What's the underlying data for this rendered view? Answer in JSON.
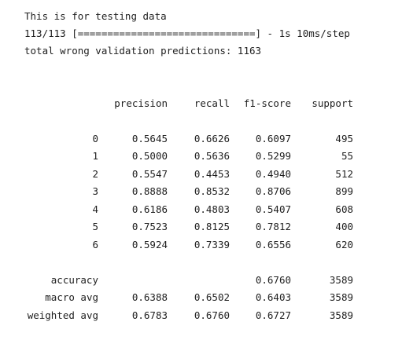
{
  "console": {
    "line1": "This is for testing data",
    "line2": "113/113 [==============================] - 1s 10ms/step",
    "line3": "total wrong validation predictions: 1163"
  },
  "report": {
    "headers": {
      "precision": "precision",
      "recall": "recall",
      "f1": "f1-score",
      "support": "support"
    },
    "rows": [
      {
        "label": "0",
        "precision": "0.5645",
        "recall": "0.6626",
        "f1": "0.6097",
        "support": "495"
      },
      {
        "label": "1",
        "precision": "0.5000",
        "recall": "0.5636",
        "f1": "0.5299",
        "support": "55"
      },
      {
        "label": "2",
        "precision": "0.5547",
        "recall": "0.4453",
        "f1": "0.4940",
        "support": "512"
      },
      {
        "label": "3",
        "precision": "0.8888",
        "recall": "0.8532",
        "f1": "0.8706",
        "support": "899"
      },
      {
        "label": "4",
        "precision": "0.6186",
        "recall": "0.4803",
        "f1": "0.5407",
        "support": "608"
      },
      {
        "label": "5",
        "precision": "0.7523",
        "recall": "0.8125",
        "f1": "0.7812",
        "support": "400"
      },
      {
        "label": "6",
        "precision": "0.5924",
        "recall": "0.7339",
        "f1": "0.6556",
        "support": "620"
      }
    ],
    "summary": [
      {
        "label": "accuracy",
        "precision": "",
        "recall": "",
        "f1": "0.6760",
        "support": "3589"
      },
      {
        "label": "macro avg",
        "precision": "0.6388",
        "recall": "0.6502",
        "f1": "0.6403",
        "support": "3589"
      },
      {
        "label": "weighted avg",
        "precision": "0.6783",
        "recall": "0.6760",
        "f1": "0.6727",
        "support": "3589"
      }
    ]
  }
}
